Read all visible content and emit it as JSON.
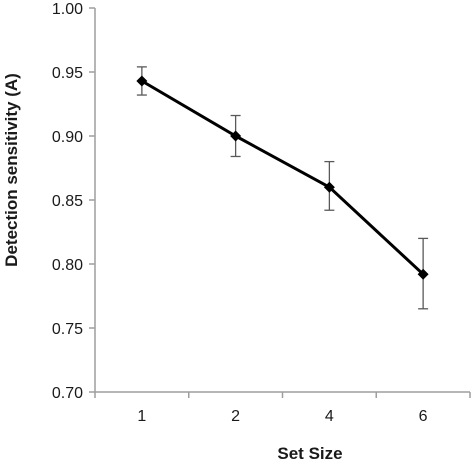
{
  "chart_data": {
    "type": "line",
    "title": "",
    "xlabel": "Set Size",
    "ylabel": "Detection sensitivity (A)",
    "categories": [
      "1",
      "2",
      "4",
      "6"
    ],
    "series": [
      {
        "values": [
          0.943,
          0.9,
          0.86,
          0.792
        ],
        "error_upper": [
          0.954,
          0.916,
          0.88,
          0.82
        ],
        "error_lower": [
          0.932,
          0.884,
          0.842,
          0.765
        ]
      }
    ],
    "ylim": [
      0.7,
      1.0
    ],
    "yticks": [
      "0.70",
      "0.75",
      "0.80",
      "0.85",
      "0.90",
      "0.95",
      "1.00"
    ],
    "grid": false,
    "legend": "none",
    "marker": "diamond",
    "line_color": "#000000",
    "errorbar_color": "#595959",
    "axis_color": "#9e9e9e"
  }
}
